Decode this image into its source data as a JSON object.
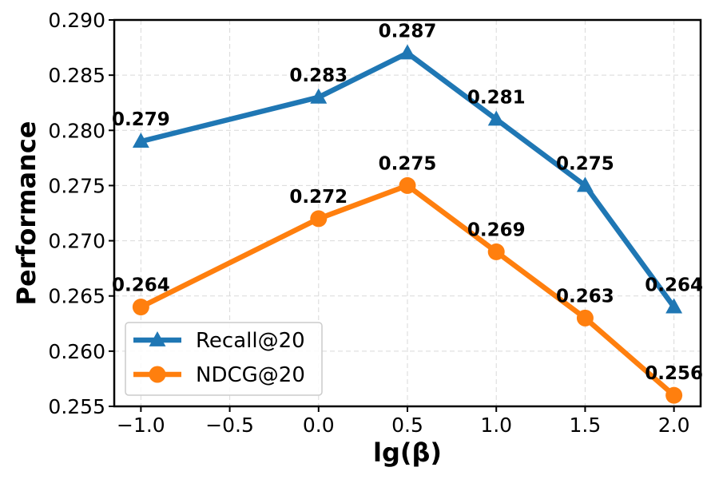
{
  "chart_data": {
    "type": "line",
    "title": "",
    "xlabel": "lg(β)",
    "ylabel": "Performance",
    "x": [
      -1.0,
      0.0,
      0.5,
      1.0,
      1.5,
      2.0
    ],
    "xlim": [
      -1.15,
      2.15
    ],
    "ylim": [
      0.255,
      0.29
    ],
    "xticks": [
      -1.0,
      -0.5,
      0.0,
      0.5,
      1.0,
      1.5,
      2.0
    ],
    "xtick_labels": [
      "−1.0",
      "−0.5",
      "0.0",
      "0.5",
      "1.0",
      "1.5",
      "2.0"
    ],
    "yticks": [
      0.255,
      0.26,
      0.265,
      0.27,
      0.275,
      0.28,
      0.285,
      0.29
    ],
    "ytick_labels": [
      "0.255",
      "0.260",
      "0.265",
      "0.270",
      "0.275",
      "0.280",
      "0.285",
      "0.290"
    ],
    "grid": true,
    "legend_position": "lower-left",
    "series": [
      {
        "name": "Recall@20",
        "color": "#1f77b4",
        "marker": "triangle",
        "values": [
          0.279,
          0.283,
          0.287,
          0.281,
          0.275,
          0.264
        ],
        "labels": [
          "0.279",
          "0.283",
          "0.287",
          "0.281",
          "0.275",
          "0.264"
        ]
      },
      {
        "name": "NDCG@20",
        "color": "#ff7f0e",
        "marker": "circle",
        "values": [
          0.264,
          0.272,
          0.275,
          0.269,
          0.263,
          0.256
        ],
        "labels": [
          "0.264",
          "0.272",
          "0.275",
          "0.269",
          "0.263",
          "0.256"
        ]
      }
    ]
  }
}
